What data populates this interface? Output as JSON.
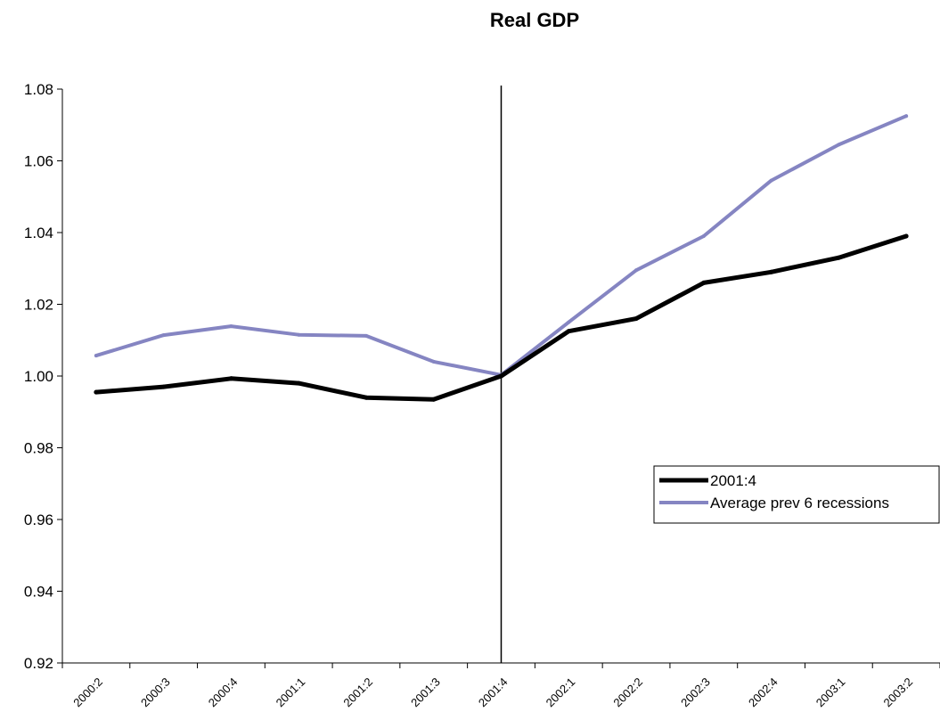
{
  "chart_data": {
    "type": "line",
    "title": "Real GDP",
    "xlabel": "",
    "ylabel": "",
    "categories": [
      "2000:2",
      "2000:3",
      "2000:4",
      "2001:1",
      "2001:2",
      "2001:3",
      "2001:4",
      "2002:1",
      "2002:2",
      "2002:3",
      "2002:4",
      "2003:1",
      "2003:2"
    ],
    "ylim": [
      0.92,
      1.08
    ],
    "yticks": [
      "0.92",
      "0.94",
      "0.96",
      "0.98",
      "1.00",
      "1.02",
      "1.04",
      "1.06",
      "1.08"
    ],
    "series": [
      {
        "name": "2001:4",
        "color": "#000000",
        "values": [
          0.9955,
          0.997,
          0.9993,
          0.998,
          0.994,
          0.9935,
          1.0,
          1.0125,
          1.016,
          1.026,
          1.029,
          1.033,
          1.039
        ]
      },
      {
        "name": "Average prev 6 recessions",
        "color": "#8585c2",
        "values": [
          1.0057,
          1.0114,
          1.0139,
          1.0115,
          1.0112,
          1.004,
          1.0003,
          1.015,
          1.0295,
          1.039,
          1.0545,
          1.0645,
          1.0725
        ]
      }
    ],
    "reference_line_at": "2001:4",
    "grid": false,
    "legend_position": "right"
  }
}
